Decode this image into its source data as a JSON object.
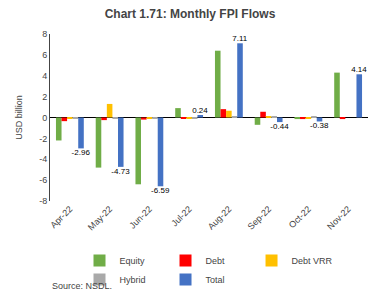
{
  "chart_data": {
    "type": "bar",
    "title": "Chart 1.71: Monthly FPI Flows",
    "y_label": "USD billion",
    "categories": [
      "Apr-22",
      "May-22",
      "Jun-22",
      "Jul-22",
      "Aug-22",
      "Sep-22",
      "Oct-22",
      "Nov-22"
    ],
    "series": [
      {
        "name": "Equity",
        "color": "#70AD47",
        "values": [
          -2.2,
          -4.8,
          -6.4,
          0.9,
          6.4,
          -0.7,
          -0.15,
          4.3
        ]
      },
      {
        "name": "Debt",
        "color": "#FF0000",
        "values": [
          -0.35,
          -0.25,
          -0.2,
          -0.1,
          0.8,
          0.55,
          -0.15,
          -0.15
        ]
      },
      {
        "name": "Debt VRR",
        "color": "#FFC000",
        "values": [
          -0.05,
          1.3,
          -0.05,
          -0.05,
          0.65,
          0.1,
          -0.05,
          0.0
        ]
      },
      {
        "name": "Hybrid",
        "color": "#A9A9A9",
        "values": [
          -0.05,
          -0.05,
          -0.05,
          -0.05,
          0.1,
          0.1,
          0.1,
          0.0
        ]
      },
      {
        "name": "Total",
        "color": "#4472C4",
        "values": [
          -2.96,
          -4.73,
          -6.59,
          0.24,
          7.11,
          -0.44,
          -0.38,
          4.14
        ],
        "data_labels": true
      }
    ],
    "ylim": [
      -8,
      8
    ],
    "yticks": [
      -8,
      -6,
      -4,
      -2,
      0,
      2,
      4,
      6,
      8
    ],
    "grid": false,
    "legend": "bottom",
    "annotations": [
      "Source: NSDL."
    ]
  }
}
